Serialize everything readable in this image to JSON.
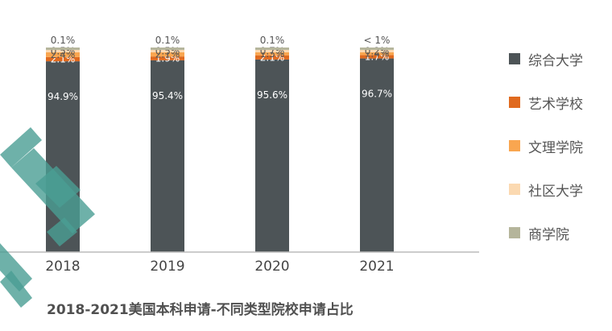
{
  "chart_data": {
    "type": "bar",
    "stacked": true,
    "title": "2018-2021美国本科申请-不同类型院校申请占比",
    "categories": [
      "2018",
      "2019",
      "2020",
      "2021"
    ],
    "ylim": [
      0,
      100
    ],
    "legend_position": "right",
    "grid": false,
    "series": [
      {
        "name": "综合大学",
        "color": "#4d5457",
        "values": [
          94.9,
          95.4,
          95.6,
          96.7
        ],
        "labels": [
          "94.9%",
          "95.4%",
          "95.6%",
          "96.7%"
        ],
        "label_color": "#ffffff"
      },
      {
        "name": "艺术学校",
        "color": "#e06a1f",
        "values": [
          2.1,
          1.9,
          2.1,
          1.7
        ],
        "labels": [
          "2.1%",
          "1.9%",
          "2.1%",
          "1.7%"
        ],
        "label_color": "#ffffff"
      },
      {
        "name": "文理学院",
        "color": "#f9a650",
        "values": [
          2.4,
          2.1,
          1.5,
          1.4
        ],
        "labels": [
          "2.4%",
          "2.1%",
          "1.5%",
          "1.4%"
        ],
        "label_color": "#555555"
      },
      {
        "name": "社区大学",
        "color": "#fbd9b1",
        "values": [
          0.5,
          0.5,
          0.7,
          0.2
        ],
        "labels": [
          "0.5%",
          "0.5%",
          "0.7%",
          "0.2%"
        ],
        "label_color": "#555555"
      },
      {
        "name": "商学院",
        "color": "#b5b59b",
        "values": [
          0.1,
          0.1,
          0.1,
          0.05
        ],
        "labels": [
          "0.1%",
          "0.1%",
          "0.1%",
          "< 1%"
        ],
        "label_color": "#555555"
      }
    ]
  }
}
